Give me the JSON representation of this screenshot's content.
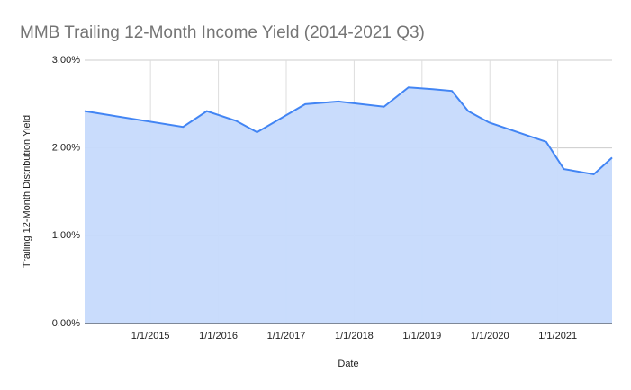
{
  "chart_data": {
    "type": "area",
    "title": "MMB Trailing 12-Month Income Yield (2014-2021 Q3)",
    "x_label": "Date",
    "y_label": "Trailing 12-Month Distribution Yield",
    "x": [
      2014.03,
      2015.48,
      2015.83,
      2016.26,
      2016.57,
      2017.28,
      2017.77,
      2018.44,
      2018.8,
      2019.16,
      2019.44,
      2019.68,
      2019.99,
      2020.83,
      2021.09,
      2021.53,
      2021.8
    ],
    "series": [
      {
        "color": "#4285f4",
        "fill": "#c6dafc",
        "values": [
          2.42,
          2.24,
          2.42,
          2.31,
          2.18,
          2.5,
          2.53,
          2.47,
          2.69,
          2.67,
          2.65,
          2.42,
          2.29,
          2.07,
          1.76,
          1.7,
          1.89
        ]
      }
    ],
    "xlim": [
      2014.03,
      2021.8
    ],
    "xticks": [
      {
        "value": 2015,
        "label": "1/1/2015"
      },
      {
        "value": 2016,
        "label": "1/1/2016"
      },
      {
        "value": 2017,
        "label": "1/1/2017"
      },
      {
        "value": 2018,
        "label": "1/1/2018"
      },
      {
        "value": 2019,
        "label": "1/1/2019"
      },
      {
        "value": 2020,
        "label": "1/1/2020"
      },
      {
        "value": 2021,
        "label": "1/1/2021"
      }
    ],
    "ylim": [
      0,
      3
    ],
    "yticks": [
      {
        "value": 0,
        "label": "0.00%"
      },
      {
        "value": 1,
        "label": "1.00%"
      },
      {
        "value": 2,
        "label": "2.00%"
      },
      {
        "value": 3,
        "label": "3.00%"
      }
    ],
    "grid": true
  }
}
